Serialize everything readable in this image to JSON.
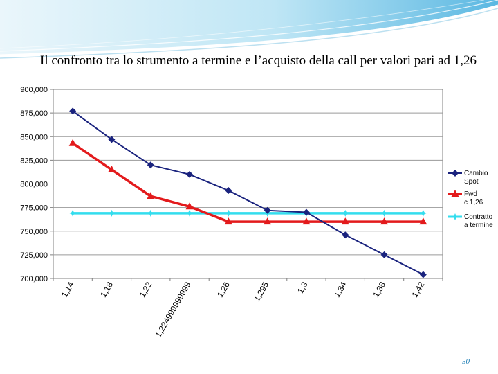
{
  "slide": {
    "title": "Il confronto tra lo strumento a termine e  l’acquisto della call per valori pari ad 1,26",
    "page_number": "50"
  },
  "chart_data": {
    "type": "line",
    "title": "",
    "xlabel": "",
    "ylabel": "",
    "categories": [
      "1,14",
      "1,18",
      "1,22",
      "1,224999999999",
      "1,26",
      "1,295",
      "1,3",
      "1,34",
      "1,38",
      "1,42"
    ],
    "ylim": [
      700000,
      900000
    ],
    "yticks": [
      700000,
      725000,
      750000,
      775000,
      800000,
      825000,
      850000,
      875000,
      900000
    ],
    "ytick_labels": [
      "700,000",
      "725,000",
      "750,000",
      "775,000",
      "800,000",
      "825,000",
      "850,000",
      "875,000",
      "900,000"
    ],
    "grid": true,
    "legend_position": "right",
    "series": [
      {
        "name": "Cambio Spot",
        "color": "#1a237e",
        "marker": "diamond",
        "values": [
          877000,
          847000,
          820000,
          810000,
          793000,
          772000,
          770000,
          746000,
          725000,
          704000
        ]
      },
      {
        "name": "Fwd c 1,26",
        "color": "#e31a1c",
        "marker": "triangle",
        "values": [
          843000,
          815000,
          787000,
          776000,
          760000,
          760000,
          760000,
          760000,
          760000,
          760000
        ]
      },
      {
        "name": "Contratto a termine",
        "color": "#33ddee",
        "marker": "star",
        "values": [
          769000,
          769000,
          769000,
          769000,
          769000,
          769000,
          769000,
          769000,
          769000,
          769000
        ]
      }
    ]
  }
}
